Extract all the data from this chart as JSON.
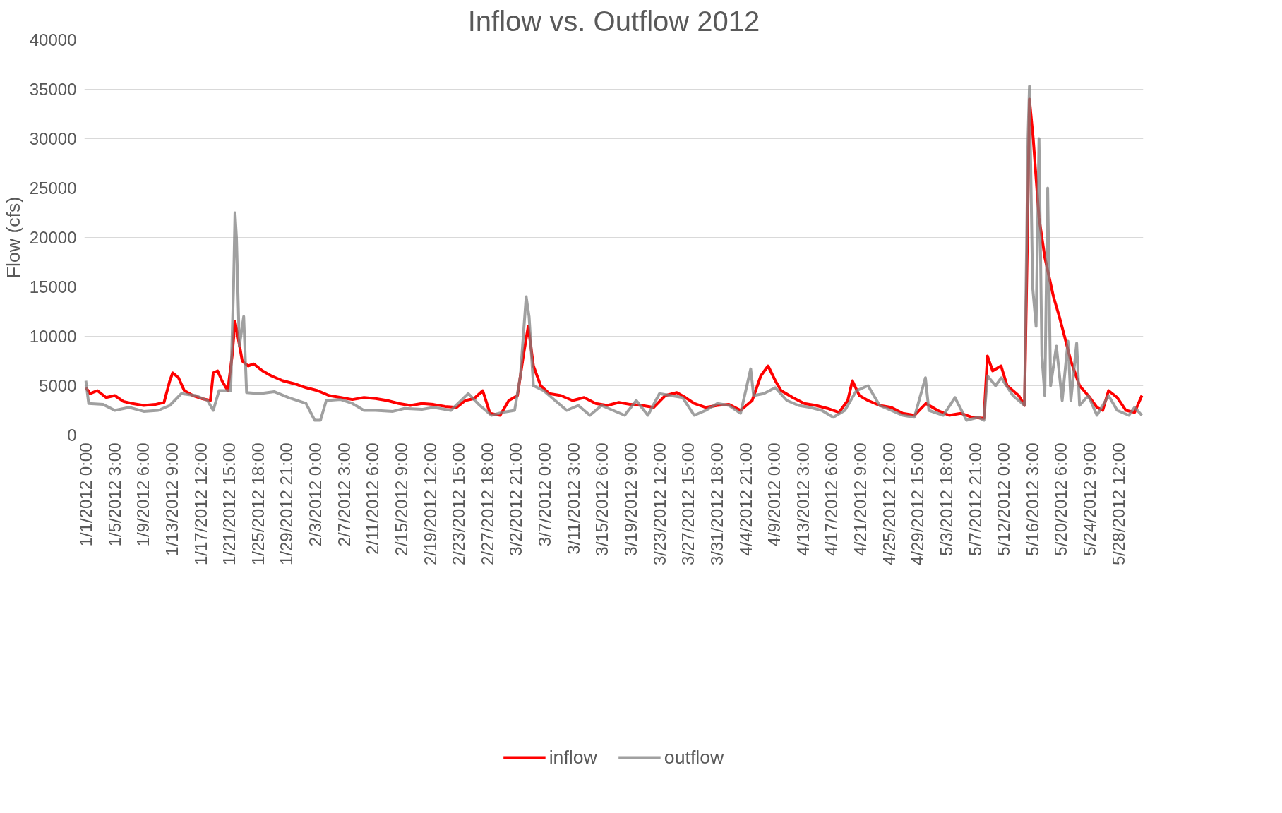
{
  "chart_data": {
    "type": "line",
    "title": "Inflow vs. Outflow 2012",
    "ylabel": "Flow (cfs)",
    "xlim": [
      "2011-12-31T19:00",
      "2012-06-01T02:00"
    ],
    "ylim": [
      0,
      40000
    ],
    "yticks": [
      0,
      5000,
      10000,
      15000,
      20000,
      25000,
      30000,
      35000,
      40000
    ],
    "xticks": [
      {
        "value": "2012-01-01T00:00",
        "label": "1/1/2012 0:00"
      },
      {
        "value": "2012-01-05T03:00",
        "label": "1/5/2012 3:00"
      },
      {
        "value": "2012-01-09T06:00",
        "label": "1/9/2012 6:00"
      },
      {
        "value": "2012-01-13T09:00",
        "label": "1/13/2012 9:00"
      },
      {
        "value": "2012-01-17T12:00",
        "label": "1/17/2012 12:00"
      },
      {
        "value": "2012-01-21T15:00",
        "label": "1/21/2012 15:00"
      },
      {
        "value": "2012-01-25T18:00",
        "label": "1/25/2012 18:00"
      },
      {
        "value": "2012-01-29T21:00",
        "label": "1/29/2012 21:00"
      },
      {
        "value": "2012-02-03T00:00",
        "label": "2/3/2012 0:00"
      },
      {
        "value": "2012-02-07T03:00",
        "label": "2/7/2012 3:00"
      },
      {
        "value": "2012-02-11T06:00",
        "label": "2/11/2012 6:00"
      },
      {
        "value": "2012-02-15T09:00",
        "label": "2/15/2012 9:00"
      },
      {
        "value": "2012-02-19T12:00",
        "label": "2/19/2012 12:00"
      },
      {
        "value": "2012-02-23T15:00",
        "label": "2/23/2012 15:00"
      },
      {
        "value": "2012-02-27T18:00",
        "label": "2/27/2012 18:00"
      },
      {
        "value": "2012-03-02T21:00",
        "label": "3/2/2012 21:00"
      },
      {
        "value": "2012-03-07T00:00",
        "label": "3/7/2012 0:00"
      },
      {
        "value": "2012-03-11T03:00",
        "label": "3/11/2012 3:00"
      },
      {
        "value": "2012-03-15T06:00",
        "label": "3/15/2012 6:00"
      },
      {
        "value": "2012-03-19T09:00",
        "label": "3/19/2012 9:00"
      },
      {
        "value": "2012-03-23T12:00",
        "label": "3/23/2012 12:00"
      },
      {
        "value": "2012-03-27T15:00",
        "label": "3/27/2012 15:00"
      },
      {
        "value": "2012-03-31T18:00",
        "label": "3/31/2012 18:00"
      },
      {
        "value": "2012-04-04T21:00",
        "label": "4/4/2012 21:00"
      },
      {
        "value": "2012-04-09T00:00",
        "label": "4/9/2012 0:00"
      },
      {
        "value": "2012-04-13T03:00",
        "label": "4/13/2012 3:00"
      },
      {
        "value": "2012-04-17T06:00",
        "label": "4/17/2012 6:00"
      },
      {
        "value": "2012-04-21T09:00",
        "label": "4/21/2012 9:00"
      },
      {
        "value": "2012-04-25T12:00",
        "label": "4/25/2012 12:00"
      },
      {
        "value": "2012-04-29T15:00",
        "label": "4/29/2012 15:00"
      },
      {
        "value": "2012-05-03T18:00",
        "label": "5/3/2012 18:00"
      },
      {
        "value": "2012-05-07T21:00",
        "label": "5/7/2012 21:00"
      },
      {
        "value": "2012-05-12T00:00",
        "label": "5/12/2012 0:00"
      },
      {
        "value": "2012-05-16T03:00",
        "label": "5/16/2012 3:00"
      },
      {
        "value": "2012-05-20T06:00",
        "label": "5/20/2012 6:00"
      },
      {
        "value": "2012-05-24T09:00",
        "label": "5/24/2012 9:00"
      },
      {
        "value": "2012-05-28T12:00",
        "label": "5/28/2012 12:00"
      }
    ],
    "grid": "y",
    "legend": "bottom",
    "line_style": "solid",
    "series": [
      {
        "name": "inflow",
        "color": "#ff0000",
        "x": [
          "2012-01-01T00:00",
          "2012-01-01T15:00",
          "2012-01-02T16:00",
          "2012-01-03T22:00",
          "2012-01-05T04:00",
          "2012-01-06T10:00",
          "2012-01-07T16:00",
          "2012-01-09T08:00",
          "2012-01-11T00:00",
          "2012-01-12T06:00",
          "2012-01-13T02:00",
          "2012-01-13T12:00",
          "2012-01-14T08:00",
          "2012-01-15T04:00",
          "2012-01-16T10:00",
          "2012-01-17T16:00",
          "2012-01-18T22:00",
          "2012-01-19T08:00",
          "2012-01-19T23:00",
          "2012-01-20T14:00",
          "2012-01-21T10:00",
          "2012-01-22T01:00",
          "2012-01-22T11:00",
          "2012-01-22T21:00",
          "2012-01-23T12:00",
          "2012-01-24T08:00",
          "2012-01-25T04:00",
          "2012-01-26T10:00",
          "2012-01-27T16:00",
          "2012-01-29T08:00",
          "2012-01-31T00:00",
          "2012-02-01T16:00",
          "2012-02-03T08:00",
          "2012-02-05T00:00",
          "2012-02-06T16:00",
          "2012-02-08T08:00",
          "2012-02-10T00:00",
          "2012-02-11T16:00",
          "2012-02-13T08:00",
          "2012-02-15T00:00",
          "2012-02-16T16:00",
          "2012-02-18T08:00",
          "2012-02-20T00:00",
          "2012-02-21T16:00",
          "2012-02-23T08:00",
          "2012-02-24T14:00",
          "2012-02-25T20:00",
          "2012-02-27T02:00",
          "2012-02-28T03:00",
          "2012-02-29T14:00",
          "2012-03-01T20:00",
          "2012-03-03T02:00",
          "2012-03-03T22:00",
          "2012-03-04T15:00",
          "2012-03-05T09:00",
          "2012-03-06T10:00",
          "2012-03-07T16:00",
          "2012-03-09T08:00",
          "2012-03-11T00:00",
          "2012-03-12T16:00",
          "2012-03-14T08:00",
          "2012-03-16T00:00",
          "2012-03-17T16:00",
          "2012-03-19T08:00",
          "2012-03-21T00:00",
          "2012-03-22T16:00",
          "2012-03-24T08:00",
          "2012-03-26T00:00",
          "2012-03-27T06:00",
          "2012-03-28T12:00",
          "2012-03-30T04:00",
          "2012-03-31T20:00",
          "2012-04-02T12:00",
          "2012-04-04T04:00",
          "2012-04-05T20:00",
          "2012-04-07T02:00",
          "2012-04-08T03:00",
          "2012-04-09T04:00",
          "2012-04-10T00:00",
          "2012-04-11T16:00",
          "2012-04-13T08:00",
          "2012-04-15T00:00",
          "2012-04-16T16:00",
          "2012-04-18T08:00",
          "2012-04-19T14:00",
          "2012-04-20T06:00",
          "2012-04-21T06:00",
          "2012-04-22T12:00",
          "2012-04-24T04:00",
          "2012-04-25T20:00",
          "2012-04-27T12:00",
          "2012-04-29T04:00",
          "2012-04-30T20:00",
          "2012-05-02T12:00",
          "2012-05-04T04:00",
          "2012-05-05T20:00",
          "2012-05-07T12:00",
          "2012-05-09T04:00",
          "2012-05-09T16:00",
          "2012-05-10T10:00",
          "2012-05-11T15:00",
          "2012-05-12T12:00",
          "2012-05-14T04:00",
          "2012-05-15T00:00",
          "2012-05-15T10:00",
          "2012-05-15T17:00",
          "2012-05-16T06:00",
          "2012-05-17T02:00",
          "2012-05-17T22:00",
          "2012-05-19T04:00",
          "2012-05-20T00:00",
          "2012-05-20T18:00",
          "2012-05-21T16:00",
          "2012-05-22T22:00",
          "2012-05-24T04:00",
          "2012-05-25T10:00",
          "2012-05-26T06:00",
          "2012-05-27T02:00",
          "2012-05-28T08:00",
          "2012-05-29T14:00",
          "2012-05-30T20:00",
          "2012-05-31T21:00"
        ],
        "values": [
          4800,
          4200,
          4500,
          3800,
          4000,
          3400,
          3200,
          3000,
          3100,
          3300,
          5500,
          6300,
          5800,
          4500,
          4000,
          3700,
          3500,
          6300,
          6500,
          5500,
          4500,
          8000,
          11500,
          10000,
          7500,
          7000,
          7200,
          6500,
          6000,
          5500,
          5200,
          4800,
          4500,
          4000,
          3800,
          3600,
          3800,
          3700,
          3500,
          3200,
          3000,
          3200,
          3100,
          2900,
          2800,
          3500,
          3700,
          4500,
          2200,
          2000,
          3500,
          4000,
          8000,
          11000,
          7000,
          5000,
          4200,
          4000,
          3500,
          3800,
          3200,
          3000,
          3300,
          3100,
          3000,
          2800,
          4000,
          4300,
          3800,
          3200,
          2800,
          3000,
          3100,
          2500,
          3500,
          6000,
          7000,
          5500,
          4500,
          3800,
          3200,
          3000,
          2700,
          2300,
          3500,
          5500,
          4000,
          3500,
          3000,
          2800,
          2200,
          2000,
          3200,
          2500,
          2000,
          2200,
          1800,
          1700,
          8000,
          6500,
          7000,
          5000,
          4000,
          3000,
          20000,
          34000,
          30000,
          22000,
          18000,
          14000,
          12000,
          10000,
          7500,
          5000,
          4000,
          2800,
          2500,
          4500,
          3800,
          2500,
          2300,
          4000
        ]
      },
      {
        "name": "outflow",
        "color": "#808080",
        "x": [
          "2012-01-01T00:00",
          "2012-01-01T10:00",
          "2012-01-03T12:00",
          "2012-01-05T04:00",
          "2012-01-07T06:00",
          "2012-01-09T08:00",
          "2012-01-11T10:00",
          "2012-01-13T02:00",
          "2012-01-14T18:00",
          "2012-01-16T20:00",
          "2012-01-18T12:00",
          "2012-01-19T08:00",
          "2012-01-20T04:00",
          "2012-01-21T20:00",
          "2012-01-22T06:00",
          "2012-01-22T11:00",
          "2012-01-22T16:00",
          "2012-01-23T02:00",
          "2012-01-23T17:00",
          "2012-01-24T03:00",
          "2012-01-26T00:00",
          "2012-01-28T02:00",
          "2012-01-30T04:00",
          "2012-02-01T16:00",
          "2012-02-02T22:00",
          "2012-02-03T18:00",
          "2012-02-04T14:00",
          "2012-02-06T16:00",
          "2012-02-08T08:00",
          "2012-02-10T00:00",
          "2012-02-11T16:00",
          "2012-02-14T04:00",
          "2012-02-15T20:00",
          "2012-02-18T08:00",
          "2012-02-20T00:00",
          "2012-02-22T12:00",
          "2012-02-25T00:00",
          "2012-02-26T16:00",
          "2012-02-28T08:00",
          "2012-03-01T00:00",
          "2012-03-02T16:00",
          "2012-03-03T12:00",
          "2012-03-04T08:00",
          "2012-03-04T18:00",
          "2012-03-05T09:00",
          "2012-03-06T20:00",
          "2012-03-08T12:00",
          "2012-03-10T04:00",
          "2012-03-11T20:00",
          "2012-03-13T12:00",
          "2012-03-15T04:00",
          "2012-03-16T20:00",
          "2012-03-18T12:00",
          "2012-03-20T04:00",
          "2012-03-21T20:00",
          "2012-03-23T12:00",
          "2012-03-25T04:00",
          "2012-03-26T20:00",
          "2012-03-28T12:00",
          "2012-03-30T04:00",
          "2012-03-31T20:00",
          "2012-04-02T12:00",
          "2012-04-04T04:00",
          "2012-04-05T15:00",
          "2012-04-06T01:00",
          "2012-04-07T12:00",
          "2012-04-09T04:00",
          "2012-04-10T20:00",
          "2012-04-12T12:00",
          "2012-04-14T04:00",
          "2012-04-15T20:00",
          "2012-04-17T12:00",
          "2012-04-19T04:00",
          "2012-04-20T20:00",
          "2012-04-22T12:00",
          "2012-04-24T04:00",
          "2012-04-25T20:00",
          "2012-04-27T12:00",
          "2012-04-29T04:00",
          "2012-04-30T18:00",
          "2012-05-01T06:00",
          "2012-05-03T08:00",
          "2012-05-05T00:00",
          "2012-05-06T16:00",
          "2012-05-08T08:00",
          "2012-05-09T04:00",
          "2012-05-09T16:00",
          "2012-05-10T20:00",
          "2012-05-11T16:00",
          "2012-05-13T08:00",
          "2012-05-15T00:00",
          "2012-05-15T12:00",
          "2012-05-15T17:00",
          "2012-05-16T04:00",
          "2012-05-16T16:00",
          "2012-05-17T02:00",
          "2012-05-17T12:00",
          "2012-05-17T22:00",
          "2012-05-18T08:00",
          "2012-05-18T18:00",
          "2012-05-19T14:00",
          "2012-05-20T10:00",
          "2012-05-21T06:00",
          "2012-05-21T16:00",
          "2012-05-22T12:00",
          "2012-05-22T22:00",
          "2012-05-24T04:00",
          "2012-05-25T10:00",
          "2012-05-27T02:00",
          "2012-05-28T08:00",
          "2012-05-30T00:00",
          "2012-05-30T20:00",
          "2012-05-31T21:00"
        ],
        "values": [
          5500,
          3200,
          3100,
          2500,
          2800,
          2400,
          2500,
          3000,
          4200,
          4000,
          3500,
          2500,
          4500,
          4500,
          15000,
          22500,
          20000,
          9000,
          12000,
          4300,
          4200,
          4400,
          3800,
          3200,
          1500,
          1500,
          3500,
          3600,
          3200,
          2500,
          2500,
          2400,
          2700,
          2600,
          2800,
          2500,
          4200,
          3000,
          2000,
          2300,
          2500,
          6000,
          14000,
          12000,
          5000,
          4500,
          3500,
          2500,
          3000,
          2000,
          3000,
          2500,
          2000,
          3500,
          2000,
          4200,
          4000,
          3800,
          2000,
          2500,
          3200,
          3000,
          2200,
          6700,
          4000,
          4200,
          4800,
          3500,
          3000,
          2800,
          2500,
          1800,
          2500,
          4500,
          5000,
          3000,
          2500,
          2000,
          1800,
          5800,
          2500,
          2000,
          3800,
          1500,
          1800,
          1500,
          6000,
          5000,
          5800,
          4000,
          3000,
          30000,
          35300,
          15000,
          11000,
          30000,
          8000,
          4000,
          25000,
          5000,
          9000,
          3500,
          9500,
          3500,
          9300,
          3000,
          4000,
          2000,
          4000,
          2500,
          2000,
          2800,
          2000
        ]
      }
    ]
  }
}
